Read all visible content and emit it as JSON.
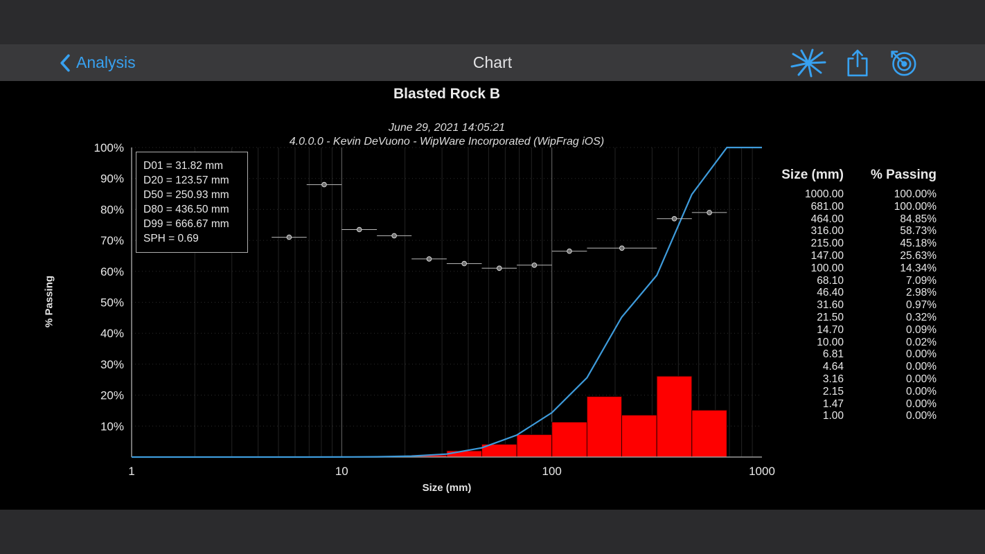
{
  "nav": {
    "back_label": "Analysis",
    "title": "Chart"
  },
  "colors": {
    "accent_blue": "#38a1f0",
    "curve_blue": "#3e9bdb",
    "bar_red": "#fe0000",
    "background": "#000000",
    "band_gray": "#2b2b2d",
    "navbar_gray": "#39393b",
    "text_light": "#e9e9e9"
  },
  "chart_data": {
    "type": "line",
    "title": "Blasted Rock B",
    "subtitle_datetime": "June 29, 2021 14:05:21",
    "subtitle_version": "4.0.0.0 - Kevin DeVuono - WipWare Incorporated (WipFrag iOS)",
    "xlabel": "Size (mm)",
    "ylabel": "% Passing",
    "x_scale": "log",
    "xlim": [
      1,
      1000
    ],
    "ylim": [
      0,
      100
    ],
    "x_ticks": [
      "1",
      "10",
      "100",
      "1000"
    ],
    "y_ticks": [
      10,
      20,
      30,
      40,
      50,
      60,
      70,
      80,
      90,
      100
    ],
    "grid": true,
    "cumulative_curve": {
      "name": "% Passing cumulative",
      "color": "#3e9bdb",
      "points": [
        [
          1,
          0
        ],
        [
          1.47,
          0
        ],
        [
          2.15,
          0
        ],
        [
          3.16,
          0
        ],
        [
          4.64,
          0
        ],
        [
          6.81,
          0
        ],
        [
          10,
          0.02
        ],
        [
          14.7,
          0.09
        ],
        [
          21.5,
          0.32
        ],
        [
          31.6,
          0.97
        ],
        [
          46.4,
          2.98
        ],
        [
          68.1,
          7.09
        ],
        [
          100,
          14.34
        ],
        [
          147,
          25.63
        ],
        [
          215,
          45.18
        ],
        [
          316,
          58.73
        ],
        [
          464,
          84.85
        ],
        [
          681,
          100
        ],
        [
          1000,
          100
        ]
      ]
    },
    "histogram": {
      "name": "% Retained per size class",
      "color": "#fe0000",
      "bins": [
        [
          10,
          14.7,
          0.07
        ],
        [
          14.7,
          21.5,
          0.23
        ],
        [
          21.5,
          31.6,
          0.65
        ],
        [
          31.6,
          46.4,
          2.01
        ],
        [
          46.4,
          68.1,
          4.11
        ],
        [
          68.1,
          100,
          7.25
        ],
        [
          100,
          147,
          11.29
        ],
        [
          147,
          215,
          19.55
        ],
        [
          215,
          316,
          13.55
        ],
        [
          316,
          464,
          26.12
        ],
        [
          464,
          681,
          15.15
        ]
      ]
    },
    "measurement_markers": {
      "name": "size-class markers with range bars",
      "color": "#bdbdbd",
      "points": [
        {
          "x_min": 4.64,
          "x_max": 6.81,
          "y": 71
        },
        {
          "x_min": 6.81,
          "x_max": 10,
          "y": 88
        },
        {
          "x_min": 10,
          "x_max": 14.7,
          "y": 73.5
        },
        {
          "x_min": 14.7,
          "x_max": 21.5,
          "y": 71.5
        },
        {
          "x_min": 21.5,
          "x_max": 31.6,
          "y": 64
        },
        {
          "x_min": 31.6,
          "x_max": 46.4,
          "y": 62.5
        },
        {
          "x_min": 46.4,
          "x_max": 68.1,
          "y": 61
        },
        {
          "x_min": 68.1,
          "x_max": 100,
          "y": 62
        },
        {
          "x_min": 100,
          "x_max": 147,
          "y": 66.5
        },
        {
          "x_min": 147,
          "x_max": 316,
          "y": 67.5
        },
        {
          "x_min": 316,
          "x_max": 464,
          "y": 77
        },
        {
          "x_min": 464,
          "x_max": 681,
          "y": 79
        }
      ]
    },
    "legend_box": {
      "lines": [
        "D01 = 31.82 mm",
        "D20 = 123.57 mm",
        "D50 = 250.93 mm",
        "D80 = 436.50 mm",
        "D99 = 666.67 mm",
        "SPH = 0.69"
      ]
    },
    "table": {
      "headers": [
        "Size (mm)",
        "% Passing"
      ],
      "rows": [
        [
          "1000.00",
          "100.00%"
        ],
        [
          "681.00",
          "100.00%"
        ],
        [
          "464.00",
          "84.85%"
        ],
        [
          "316.00",
          "58.73%"
        ],
        [
          "215.00",
          "45.18%"
        ],
        [
          "147.00",
          "25.63%"
        ],
        [
          "100.00",
          "14.34%"
        ],
        [
          "68.10",
          "7.09%"
        ],
        [
          "46.40",
          "2.98%"
        ],
        [
          "31.60",
          "0.97%"
        ],
        [
          "21.50",
          "0.32%"
        ],
        [
          "14.70",
          "0.09%"
        ],
        [
          "10.00",
          "0.02%"
        ],
        [
          "6.81",
          "0.00%"
        ],
        [
          "4.64",
          "0.00%"
        ],
        [
          "3.16",
          "0.00%"
        ],
        [
          "2.15",
          "0.00%"
        ],
        [
          "1.47",
          "0.00%"
        ],
        [
          "1.00",
          "0.00%"
        ]
      ]
    }
  }
}
